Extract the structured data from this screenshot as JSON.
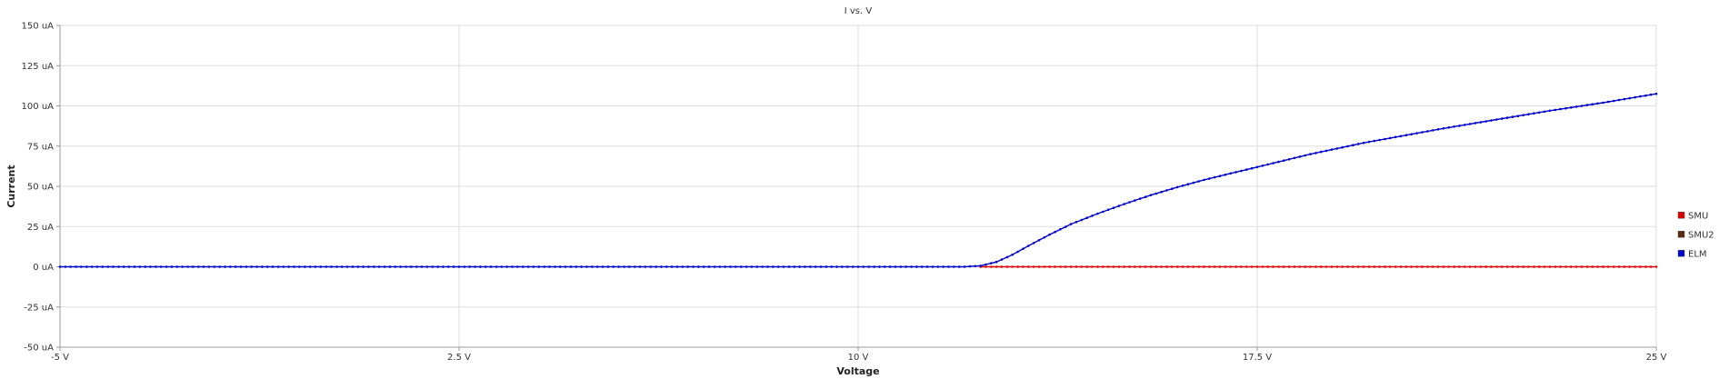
{
  "chart_data": {
    "type": "line",
    "title": "I vs. V",
    "xlabel": "Voltage",
    "ylabel": "Current",
    "xlim": [
      -5,
      25
    ],
    "ylim": [
      -50,
      150
    ],
    "x_ticks": [
      -5,
      2.5,
      10,
      17.5,
      25
    ],
    "x_tick_labels": [
      "-5 V",
      "2.5 V",
      "10 V",
      "17.5 V",
      "25 V"
    ],
    "y_ticks": [
      150,
      125,
      100,
      75,
      50,
      25,
      0,
      -25,
      -50
    ],
    "y_tick_labels": [
      "150 uA",
      "125 uA",
      "100 uA",
      "75 uA",
      "50 uA",
      "25 uA",
      "0 uA",
      "-25 uA",
      "-50 uA"
    ],
    "grid": true,
    "legend_position": "right",
    "series": [
      {
        "name": "SMU",
        "color": "#dd0000",
        "x": [
          12.3,
          13,
          14,
          15,
          16,
          17,
          18,
          19,
          20,
          21,
          22,
          23,
          24,
          25
        ],
        "y": [
          0,
          0,
          0,
          0,
          0,
          0,
          0,
          0,
          0,
          0,
          0,
          0,
          0,
          0
        ]
      },
      {
        "name": "SMU2",
        "color": "#5a2a10",
        "x": [],
        "y": []
      },
      {
        "name": "ELM",
        "color": "#0000cc",
        "x": [
          -5,
          -2.5,
          0,
          2.5,
          5,
          7.5,
          10,
          11,
          12,
          12.3,
          12.6,
          12.9,
          13.2,
          13.6,
          14,
          14.5,
          15,
          15.5,
          16,
          16.5,
          17,
          17.5,
          18,
          18.5,
          19,
          19.5,
          20,
          20.5,
          21,
          22,
          23,
          24,
          25
        ],
        "y": [
          0,
          0,
          0,
          0,
          0,
          0,
          0,
          0,
          0,
          0.6,
          3,
          7.5,
          13,
          20,
          26.5,
          33,
          39,
          44.5,
          49.5,
          54,
          58,
          62,
          66,
          70,
          73.5,
          77,
          80,
          83,
          86,
          91.5,
          97,
          102,
          107.5
        ]
      }
    ]
  }
}
